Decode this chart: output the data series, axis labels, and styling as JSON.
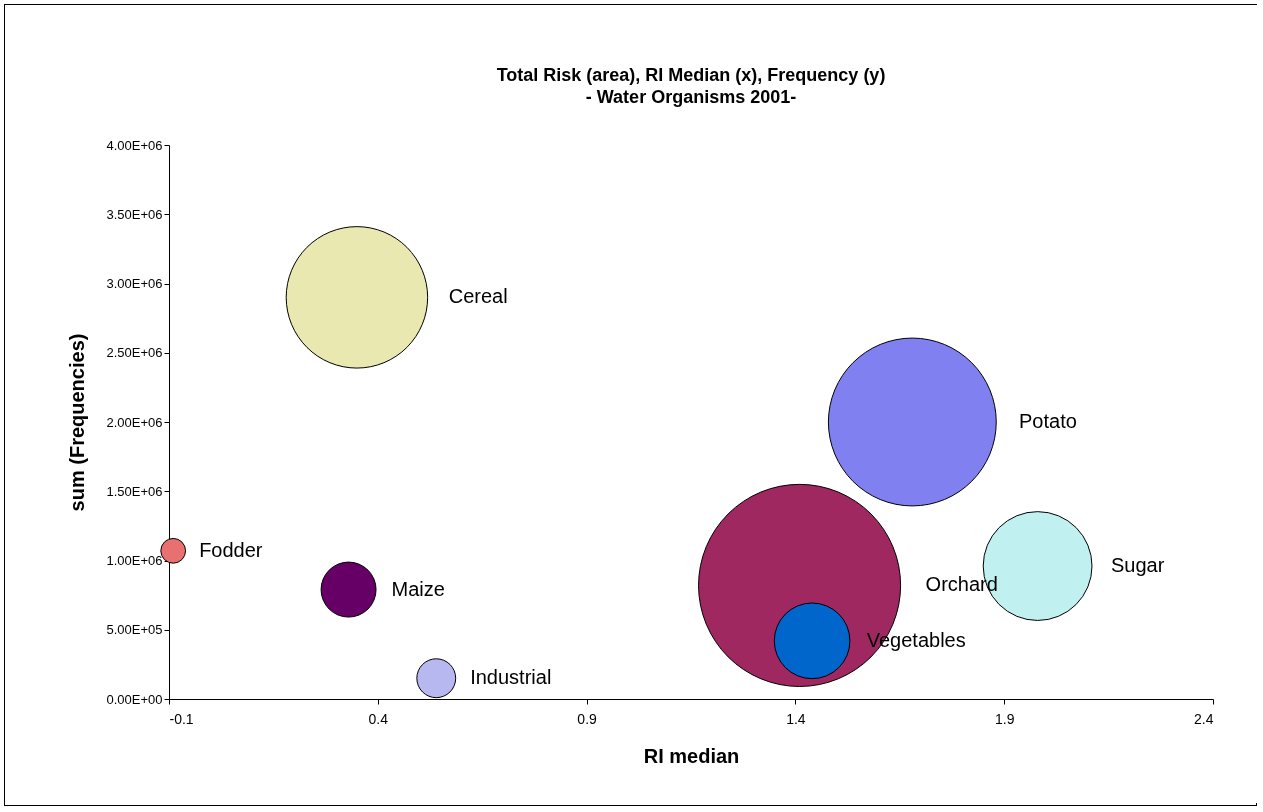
{
  "chart_data": {
    "type": "bubble",
    "title": "Total Risk (area), RI Median (x), Frequency (y)",
    "subtitle": "- Water Organisms 2001-",
    "xlabel": "RI median",
    "ylabel": "sum (Frequencies)",
    "xlim": [
      -0.1,
      2.4
    ],
    "xticks": [
      -0.1,
      0.4,
      0.9,
      1.4,
      1.9,
      2.4
    ],
    "ylim": [
      0,
      4000000
    ],
    "yticks": [
      {
        "value": 0,
        "label": "0.00E+00"
      },
      {
        "value": 500000,
        "label": "5.00E+05"
      },
      {
        "value": 1000000,
        "label": "1.00E+06"
      },
      {
        "value": 1500000,
        "label": "1.50E+06"
      },
      {
        "value": 2000000,
        "label": "2.00E+06"
      },
      {
        "value": 2500000,
        "label": "2.50E+06"
      },
      {
        "value": 3000000,
        "label": "3.00E+06"
      },
      {
        "value": 3500000,
        "label": "3.50E+06"
      },
      {
        "value": 4000000,
        "label": "4.00E+06"
      }
    ],
    "grid": false,
    "legend": false,
    "marker": "circle",
    "series": [
      {
        "name": "Orchard",
        "color": "#a02860",
        "x": [
          1.41
        ],
        "values": [
          820000
        ],
        "sizes": [
          1
        ]
      },
      {
        "name": "Potato",
        "color": "#8080f0",
        "x": [
          1.68
        ],
        "values": [
          2000000
        ],
        "sizes": [
          0.69
        ]
      },
      {
        "name": "Cereal",
        "color": "#e8e8b0",
        "x": [
          0.35
        ],
        "values": [
          2900000
        ],
        "sizes": [
          0.49
        ]
      },
      {
        "name": "Sugar",
        "color": "#c0f0f0",
        "x": [
          1.98
        ],
        "values": [
          960000
        ],
        "sizes": [
          0.29
        ]
      },
      {
        "name": "Vegetables",
        "color": "#0066cc",
        "x": [
          1.44
        ],
        "values": [
          420000
        ],
        "sizes": [
          0.14
        ]
      },
      {
        "name": "Maize",
        "color": "#660066",
        "x": [
          0.33
        ],
        "values": [
          790000
        ],
        "sizes": [
          0.074
        ]
      },
      {
        "name": "Industrial",
        "color": "#b8b8f0",
        "x": [
          0.54
        ],
        "values": [
          150000
        ],
        "sizes": [
          0.037
        ]
      },
      {
        "name": "Fodder",
        "color": "#e87070",
        "x": [
          -0.09
        ],
        "values": [
          1070000
        ],
        "sizes": [
          0.015
        ]
      }
    ]
  }
}
